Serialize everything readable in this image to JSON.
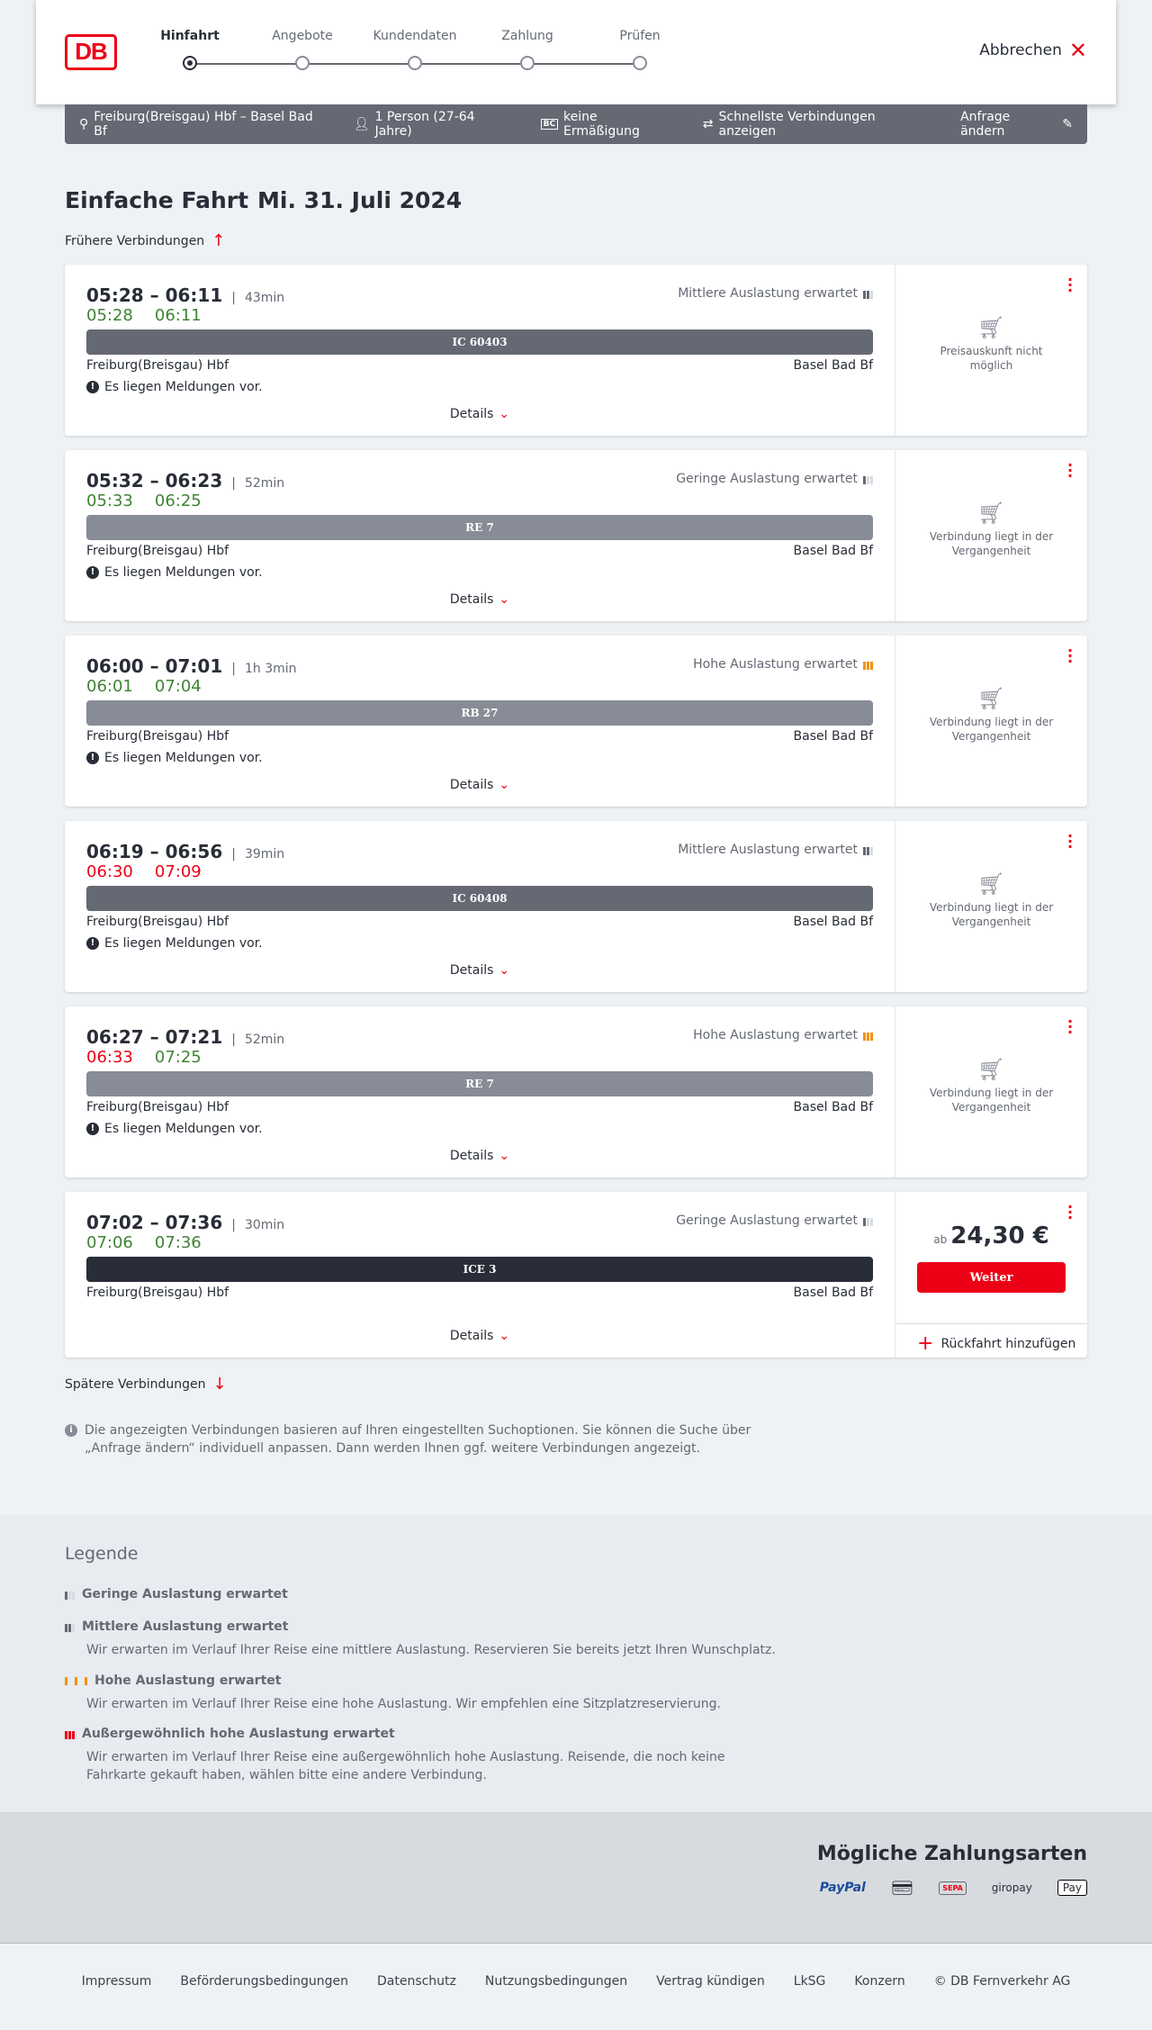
{
  "header": {
    "logo": "DB",
    "steps": [
      "Hinfahrt",
      "Angebote",
      "Kundendaten",
      "Zahlung",
      "Prüfen"
    ],
    "active_step": 0,
    "cancel": "Abbrechen"
  },
  "infobar": {
    "route": "Freiburg(Breisgau) Hbf – Basel Bad Bf",
    "travellers": "1 Person (27-64 Jahre)",
    "discount": "keine Ermäßigung",
    "fastest": "Schnellste Verbindungen anzeigen",
    "edit": "Anfrage ändern"
  },
  "title": {
    "type": "Einfache Fahrt",
    "date": "Mi. 31. Juli 2024"
  },
  "earlier": "Frühere Verbindungen",
  "later": "Spätere Verbindungen",
  "colors": {
    "accent": "#ec0016",
    "on_time": "#408335",
    "delay": "#ec0016",
    "high_load": "#f39200"
  },
  "connections": [
    {
      "times": "05:28 – 06:11",
      "duration": "43min",
      "rt_dep": "05:28",
      "rt_arr": "06:11",
      "dep_late": false,
      "arr_late": false,
      "occupancy": "Mittlere Auslastung erwartet",
      "occ_level": 2,
      "train": "IC 60403",
      "train_color": "#646973",
      "from": "Freiburg(Breisgau) Hbf",
      "to": "Basel Bad Bf",
      "message": "Es liegen Meldungen vor.",
      "details": "Details",
      "price_info": "Preisauskunft nicht möglich"
    },
    {
      "times": "05:32 – 06:23",
      "duration": "52min",
      "rt_dep": "05:33",
      "rt_arr": "06:25",
      "dep_late": false,
      "arr_late": false,
      "occupancy": "Geringe Auslastung erwartet",
      "occ_level": 1,
      "train": "RE 7",
      "train_color": "#878c96",
      "from": "Freiburg(Breisgau) Hbf",
      "to": "Basel Bad Bf",
      "message": "Es liegen Meldungen vor.",
      "details": "Details",
      "price_info": "Verbindung liegt in der Vergangenheit"
    },
    {
      "times": "06:00 – 07:01",
      "duration": "1h 3min",
      "rt_dep": "06:01",
      "rt_arr": "07:04",
      "dep_late": false,
      "arr_late": false,
      "occupancy": "Hohe Auslastung erwartet",
      "occ_level": 3,
      "train": "RB 27",
      "train_color": "#878c96",
      "from": "Freiburg(Breisgau) Hbf",
      "to": "Basel Bad Bf",
      "message": "Es liegen Meldungen vor.",
      "details": "Details",
      "price_info": "Verbindung liegt in der Vergangenheit"
    },
    {
      "times": "06:19 – 06:56",
      "duration": "39min",
      "rt_dep": "06:30",
      "rt_arr": "07:09",
      "dep_late": true,
      "arr_late": true,
      "occupancy": "Mittlere Auslastung erwartet",
      "occ_level": 2,
      "train": "IC 60408",
      "train_color": "#646973",
      "from": "Freiburg(Breisgau) Hbf",
      "to": "Basel Bad Bf",
      "message": "Es liegen Meldungen vor.",
      "details": "Details",
      "price_info": "Verbindung liegt in der Vergangenheit"
    },
    {
      "times": "06:27 – 07:21",
      "duration": "52min",
      "rt_dep": "06:33",
      "rt_arr": "07:25",
      "dep_late": true,
      "arr_late": false,
      "occupancy": "Hohe Auslastung erwartet",
      "occ_level": 3,
      "train": "RE 7",
      "train_color": "#878c96",
      "from": "Freiburg(Breisgau) Hbf",
      "to": "Basel Bad Bf",
      "message": "Es liegen Meldungen vor.",
      "details": "Details",
      "price_info": "Verbindung liegt in der Vergangenheit"
    },
    {
      "times": "07:02 – 07:36",
      "duration": "30min",
      "rt_dep": "07:06",
      "rt_arr": "07:36",
      "dep_late": false,
      "arr_late": false,
      "occupancy": "Geringe Auslastung erwartet",
      "occ_level": 1,
      "train": "ICE 3",
      "train_color": "#282d37",
      "from": "Freiburg(Breisgau) Hbf",
      "to": "Basel Bad Bf",
      "details": "Details",
      "price_prefix": "ab",
      "price": "24,30 €",
      "button": "Weiter",
      "return": "Rückfahrt hinzufügen"
    }
  ],
  "note": "Die angezeigten Verbindungen basieren auf Ihren eingestellten Suchoptionen. Sie können die Suche über „Anfrage ändern“ individuell anpassen. Dann werden Ihnen ggf. weitere Verbindungen angezeigt.",
  "legend": {
    "title": "Legende",
    "items": [
      {
        "title": "Geringe Auslastung erwartet",
        "text": ""
      },
      {
        "title": "Mittlere Auslastung erwartet",
        "text": "Wir erwarten im Verlauf Ihrer Reise eine mittlere Auslastung. Reservieren Sie bereits jetzt Ihren Wunschplatz."
      },
      {
        "title": "Hohe Auslastung erwartet",
        "text": "Wir erwarten im Verlauf Ihrer Reise eine hohe Auslastung. Wir empfehlen eine Sitzplatzreservierung."
      },
      {
        "title": "Außergewöhnlich hohe Auslastung erwartet",
        "text": "Wir erwarten im Verlauf Ihrer Reise eine außergewöhnlich hohe Auslastung. Reisende, die noch keine Fahrkarte gekauft haben, wählen bitte eine andere Verbindung."
      }
    ]
  },
  "payment": {
    "title": "Mögliche Zahlungsarten",
    "methods": [
      "PayPal",
      "credit-card",
      "SEPA",
      "giropay",
      "Pay"
    ]
  },
  "footer": [
    "Impressum",
    "Beförderungsbedingungen",
    "Datenschutz",
    "Nutzungsbedingungen",
    "Vertrag kündigen",
    "LkSG",
    "Konzern",
    "© DB Fernverkehr AG"
  ]
}
